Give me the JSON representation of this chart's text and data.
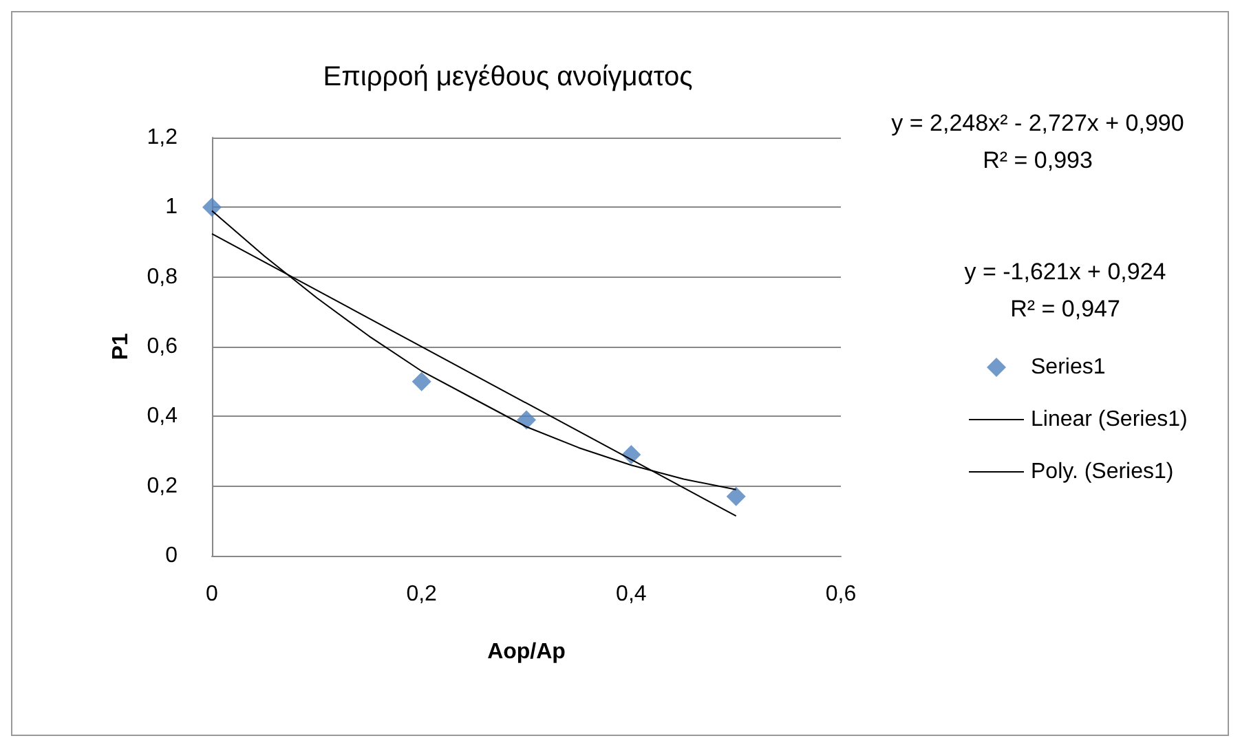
{
  "chart_data": {
    "type": "scatter",
    "title": "Επιρροή μεγέθους ανοίγματος",
    "xlabel": "Aop/Ap",
    "ylabel": "P1",
    "annotations": [
      "y = 2,248x² - 2,727x + 0,990",
      "R² = 0,993",
      "y = -1,621x + 0,924",
      "R² = 0,947"
    ],
    "series": [
      {
        "name": "Series1",
        "color": "#4f81bd",
        "x": [
          0,
          0.2,
          0.3,
          0.4,
          0.5
        ],
        "values": [
          1,
          0.5,
          0.39,
          0.29,
          0.17
        ]
      },
      {
        "name": "Linear (Series1)",
        "type": "line",
        "marker": "none",
        "color": "#000000",
        "x": [
          0,
          0.5
        ],
        "values": [
          0.924,
          0.114
        ]
      },
      {
        "name": "Poly. (Series1)",
        "type": "line",
        "marker": "none",
        "color": "#000000",
        "x": [
          0,
          0.05,
          0.1,
          0.15,
          0.2,
          0.25,
          0.3,
          0.35,
          0.4,
          0.45,
          0.5
        ],
        "values": [
          0.99,
          0.86,
          0.74,
          0.63,
          0.53,
          0.45,
          0.37,
          0.31,
          0.26,
          0.22,
          0.19
        ]
      }
    ],
    "xlim": [
      0,
      0.6
    ],
    "xticks": [
      0,
      {
        "value": 0.2,
        "label": "0,2"
      },
      {
        "value": 0.4,
        "label": "0,4"
      },
      {
        "value": 0.6,
        "label": "0,6"
      }
    ],
    "ylim": [
      0,
      1.2
    ],
    "yticks": [
      0,
      {
        "value": 0.2,
        "label": "0,2"
      },
      {
        "value": 0.4,
        "label": "0,4"
      },
      {
        "value": 0.6,
        "label": "0,6"
      },
      {
        "value": 0.8,
        "label": "0,8"
      },
      1,
      {
        "value": 1.2,
        "label": "1,2"
      }
    ],
    "grid": "y",
    "legend": "right",
    "marker": "diamond"
  }
}
